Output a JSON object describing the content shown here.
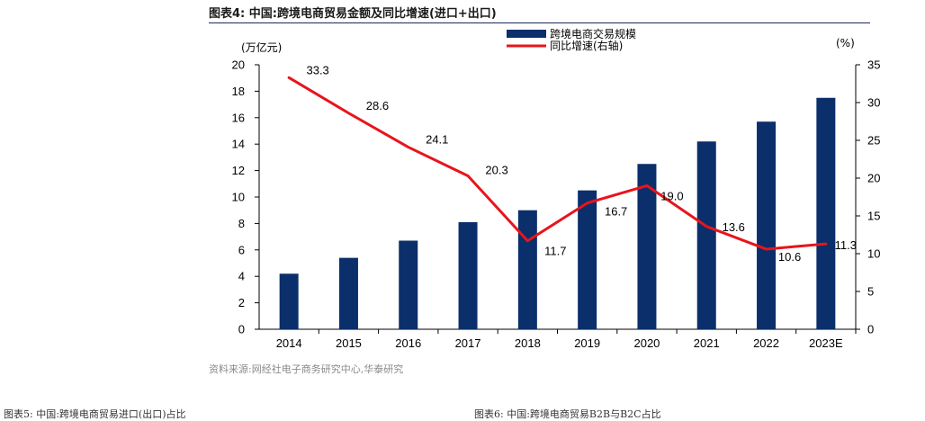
{
  "header": {
    "title": "图表4:  中国:跨境电商贸易金额及同比增速(进口+出口)",
    "source": "资料来源:网经社电子商务研究中心,华泰研究",
    "next_left": "图表5:  中国:跨境电商贸易进口(出口)占比",
    "next_right": "图表6:  中国:跨境电商贸易B2B与B2C占比"
  },
  "chart_data": {
    "type": "bar+line",
    "categories": [
      "2014",
      "2015",
      "2016",
      "2017",
      "2018",
      "2019",
      "2020",
      "2021",
      "2022",
      "2023E"
    ],
    "series": [
      {
        "name": "跨境电商交易规模",
        "type": "bar",
        "axis": "left",
        "color": "#0b2f6b",
        "values": [
          4.2,
          5.4,
          6.7,
          8.1,
          9.0,
          10.5,
          12.5,
          14.2,
          15.7,
          17.5
        ]
      },
      {
        "name": "同比增速(右轴)",
        "type": "line",
        "axis": "right",
        "color": "#e8141c",
        "values": [
          33.3,
          28.6,
          24.1,
          20.3,
          11.7,
          16.7,
          19.0,
          13.6,
          10.6,
          11.3
        ]
      }
    ],
    "data_labels": [
      "33.3",
      "28.6",
      "24.1",
      "20.3",
      "11.7",
      "16.7",
      "19.0",
      "13.6",
      "10.6",
      "11.3"
    ],
    "y_left": {
      "unit": "(万亿元)",
      "ylim": [
        0,
        20
      ],
      "ticks": [
        "0",
        "2",
        "4",
        "6",
        "8",
        "10",
        "12",
        "14",
        "16",
        "18",
        "20"
      ]
    },
    "y_right": {
      "unit": "(%)",
      "ylim": [
        0,
        35
      ],
      "ticks": [
        "0",
        "5",
        "10",
        "15",
        "20",
        "25",
        "30",
        "35"
      ]
    },
    "legend": {
      "placement": "top-right",
      "entries": [
        "跨境电商交易规模",
        "同比增速(右轴)"
      ]
    },
    "grid": false
  }
}
